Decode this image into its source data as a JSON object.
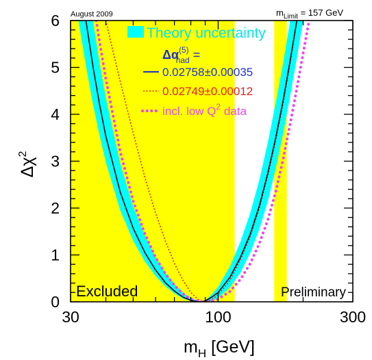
{
  "chart_data": {
    "type": "line",
    "top_left_note": "August 2009",
    "top_right_note": {
      "prefix": "m",
      "sub": "Limit",
      "suffix": " = 157 GeV"
    },
    "xlabel": {
      "main": "m",
      "sub": "H",
      "unit": " [GeV]"
    },
    "ylabel": {
      "main": "Δχ",
      "sup": "2"
    },
    "x_scale": "log",
    "xlim": [
      30,
      300
    ],
    "ylim": [
      0,
      6
    ],
    "x_ticks": [
      30,
      100,
      300
    ],
    "x_tick_labels": [
      "30",
      "100",
      "300"
    ],
    "y_ticks": [
      0,
      1,
      2,
      3,
      4,
      5,
      6
    ],
    "y_tick_labels": [
      "0",
      "1",
      "2",
      "3",
      "4",
      "5",
      "6"
    ],
    "excluded_regions": [
      [
        30,
        114.4
      ],
      [
        158,
        175
      ]
    ],
    "excluded_label": "Excluded",
    "preliminary_label": "Preliminary",
    "legend": {
      "band": "Theory uncertainty",
      "header": {
        "main": "Δα",
        "sup": "(5)",
        "sub": "had",
        "suffix": " ="
      },
      "entries": [
        {
          "label": "0.02758±0.00035",
          "color": "#1c2fd0",
          "style": "solid"
        },
        {
          "label": "0.02749±0.00012",
          "color": "#e51f1f",
          "style": "dotted"
        },
        {
          "label_main": "incl. low Q",
          "label_sup": "2",
          "label_suffix": " data",
          "color": "#ee44ee",
          "style": "dotted-thick"
        }
      ]
    },
    "colors": {
      "excluded": "#ffff00",
      "band": "#00ffff",
      "central": "#000000",
      "red": "#e51f1f",
      "magenta": "#ee44ee"
    },
    "series": [
      {
        "name": "0.02758±0.00035",
        "kind": "central",
        "x": [
          34,
          36,
          38,
          40,
          45,
          50,
          55,
          60,
          65,
          70,
          75,
          80,
          85,
          88,
          90,
          95,
          100,
          110,
          120,
          130,
          140,
          150,
          160,
          170,
          180,
          190
        ],
        "y": [
          6.0,
          5.03,
          4.21,
          3.53,
          2.34,
          1.57,
          1.05,
          0.68,
          0.41,
          0.23,
          0.1,
          0.03,
          0.0,
          0.0,
          0.02,
          0.1,
          0.2,
          0.52,
          0.95,
          1.45,
          2.05,
          2.75,
          3.5,
          4.3,
          5.15,
          6.0
        ]
      },
      {
        "name": "band-left-edge",
        "kind": "band_edge",
        "x": [
          32,
          34,
          36,
          38,
          40,
          45,
          50,
          55,
          60,
          65,
          70,
          75,
          80,
          85,
          88,
          90,
          95,
          100,
          110,
          120,
          130,
          140,
          150,
          160,
          170,
          180
        ],
        "y": [
          6.0,
          5.04,
          4.22,
          3.55,
          2.98,
          1.95,
          1.3,
          0.86,
          0.55,
          0.33,
          0.18,
          0.07,
          0.02,
          0.0,
          0.0,
          0.03,
          0.16,
          0.32,
          0.75,
          1.28,
          1.9,
          2.6,
          3.4,
          4.25,
          5.1,
          6.0
        ]
      },
      {
        "name": "band-right-edge",
        "kind": "band_edge",
        "x": [
          36,
          38,
          40,
          45,
          50,
          55,
          60,
          65,
          70,
          75,
          80,
          85,
          90,
          95,
          100,
          110,
          120,
          130,
          140,
          150,
          160,
          170,
          180,
          190,
          200
        ],
        "y": [
          6.0,
          5.1,
          4.35,
          2.95,
          2.03,
          1.4,
          0.95,
          0.62,
          0.38,
          0.2,
          0.08,
          0.02,
          0.0,
          0.02,
          0.08,
          0.3,
          0.62,
          1.05,
          1.55,
          2.15,
          2.85,
          3.6,
          4.4,
          5.2,
          6.0
        ]
      },
      {
        "name": "0.02749±0.00012",
        "kind": "red_dotted",
        "x": [
          40,
          42,
          45,
          50,
          55,
          60,
          65,
          70,
          75,
          80,
          85,
          88,
          90,
          95,
          100,
          110,
          120,
          130,
          140,
          150,
          160,
          170,
          180,
          190
        ],
        "y": [
          6.0,
          5.45,
          4.7,
          3.6,
          2.65,
          1.9,
          1.3,
          0.82,
          0.46,
          0.2,
          0.05,
          0.0,
          0.0,
          0.05,
          0.15,
          0.45,
          0.9,
          1.4,
          2.0,
          2.7,
          3.45,
          4.25,
          5.1,
          6.0
        ]
      },
      {
        "name": "incl. low Q2 data",
        "kind": "magenta_left",
        "x": [
          37,
          38,
          40,
          45,
          50,
          55,
          60,
          65,
          70,
          75,
          80,
          85,
          90
        ],
        "y": [
          6.0,
          5.55,
          4.75,
          3.2,
          2.15,
          1.45,
          0.95,
          0.6,
          0.35,
          0.17,
          0.06,
          0.01,
          0.0
        ]
      },
      {
        "name": "incl. low Q2 data",
        "kind": "magenta_right",
        "x": [
          85,
          90,
          95,
          100,
          110,
          120,
          130,
          140,
          150,
          160,
          170,
          180,
          190,
          200,
          210
        ],
        "y": [
          0.0,
          0.0,
          0.02,
          0.06,
          0.22,
          0.48,
          0.82,
          1.25,
          1.75,
          2.35,
          3.05,
          3.8,
          4.55,
          5.3,
          6.0
        ]
      }
    ]
  }
}
